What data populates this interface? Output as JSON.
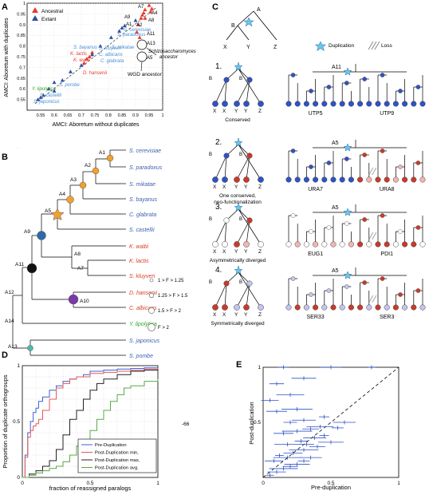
{
  "panels": {
    "A": {
      "letter": "A",
      "legend": {
        "ancestral": "Ancestral",
        "extant": "Extant"
      },
      "ylabel": "AMCI: Aboretum with duplicates",
      "xlabel": "AMCI: Aboretum without  duplicates",
      "yticks": [
        "1",
        "0.95",
        "0.9",
        "0.85",
        "0.8",
        "0.75",
        "0.7",
        "0.65",
        "0.6",
        "0.55"
      ],
      "xticks": [
        "0.55",
        "0.6",
        "0.65",
        "0.7",
        "0.75",
        "0.8",
        "0.85",
        "0.9",
        "0.95",
        "1"
      ],
      "ancestral_labels": [
        "A7",
        "A4",
        "A8",
        "A9",
        "A1",
        "A2",
        "A11",
        "A13",
        "A5"
      ],
      "species_labels": [
        "S. cerevisiae",
        "S. paradoxus",
        "S. mikatae",
        "S. bayanus",
        "K. lactis",
        "S. kluyveri",
        "C. albicans",
        "K. waltii",
        "C. glabrata",
        "D. hansenii",
        "Y. lipolytica",
        "S. pombe",
        "S. castellii",
        "S. japonicus"
      ],
      "annotation1": "Schizosaccharomyces",
      "annotation2": "ancestor",
      "annotation3": "WGD ancestor",
      "colors": {
        "ancestral": "#e8392b",
        "extant": "#2b4fa3"
      }
    },
    "B": {
      "letter": "B",
      "species": [
        "S. cerevisiae",
        "S. paradoxus",
        "S. mikatae",
        "S. bayanus",
        "C. glabrata",
        "S. castellii",
        "K. waltii",
        "K. lactis",
        "S. kluyveri",
        "D. hansenii",
        "C. albicans",
        "Y. lipolytica",
        "S. japonicus",
        "S. pombe"
      ],
      "node_labels": [
        "A1",
        "A2",
        "A3",
        "A4",
        "A5",
        "A9",
        "A8",
        "A7",
        "A11",
        "A10",
        "A12",
        "A14",
        "A13"
      ],
      "size_legend": [
        "1 > F > 1.25",
        "1.25 > F > 1.5",
        "1.5 > F > 2",
        "F > 2"
      ]
    },
    "C": {
      "letter": "C",
      "legend": {
        "duplication": "Duplication",
        "loss": "Loss"
      },
      "scheme_labels": {
        "a": "A",
        "b": "B",
        "x": "X",
        "y": "Y",
        "z": "Z"
      },
      "rows": [
        {
          "num": "1.",
          "caption": "Conserved",
          "caption2": "",
          "left": "UTP5",
          "right": "UTP9",
          "node": "A11"
        },
        {
          "num": "2.",
          "caption": "One conserved,",
          "caption2": "neo-functionalization",
          "left": "URA7",
          "right": "URA8",
          "node": "A5"
        },
        {
          "num": "3.",
          "caption": "Asymmetrically diverged",
          "caption2": "",
          "left": "EUG1",
          "right": "PDI1",
          "node": "A5"
        },
        {
          "num": "4.",
          "caption": "Symmetrically diverged",
          "caption2": "",
          "left": "SER33",
          "right": "SER3",
          "node": "A5"
        }
      ]
    },
    "D": {
      "letter": "D",
      "ylabel": "Proportion of duplicate orthogroups",
      "xlabel": "fraction of reassigned paralogs",
      "xticks": [
        "0",
        "0.5",
        "1"
      ],
      "yticks": [
        "0",
        "0.5",
        "1"
      ],
      "legend": [
        "Pre-Duplication",
        "Post-Duplication min,",
        "Post-Duplication max,",
        "Post-Duplication avg."
      ],
      "side_text": "-66"
    },
    "E": {
      "letter": "E",
      "ylabel": "Post-duplication",
      "xlabel": "Pre-duplication",
      "xticks": [
        "0",
        "0.5",
        "1"
      ],
      "yticks": [
        "1",
        "0.5"
      ]
    }
  },
  "chart_data": [
    {
      "type": "scatter",
      "title": "",
      "xlabel": "AMCI: Aboretum without  duplicates",
      "ylabel": "AMCI: Aboretum with duplicates",
      "xlim": [
        0.5,
        1.0
      ],
      "ylim": [
        0.5,
        1.0
      ],
      "series": [
        {
          "name": "Ancestral",
          "points": [
            [
              0.95,
              0.99
            ],
            [
              0.96,
              0.975
            ],
            [
              0.955,
              0.96
            ],
            [
              0.935,
              0.97
            ],
            [
              0.93,
              0.955
            ],
            [
              0.925,
              0.945
            ],
            [
              0.935,
              0.93
            ],
            [
              0.92,
              0.93
            ],
            [
              0.91,
              0.9
            ],
            [
              0.905,
              0.865
            ],
            [
              0.915,
              0.84
            ],
            [
              0.72,
              0.74
            ],
            [
              0.73,
              0.75
            ],
            [
              0.74,
              0.77
            ],
            [
              0.71,
              0.72
            ]
          ]
        },
        {
          "name": "Extant",
          "points": [
            [
              0.9,
              0.92
            ],
            [
              0.86,
              0.895
            ],
            [
              0.85,
              0.885
            ],
            [
              0.84,
              0.87
            ],
            [
              0.81,
              0.84
            ],
            [
              0.77,
              0.8
            ],
            [
              0.74,
              0.76
            ],
            [
              0.63,
              0.64
            ],
            [
              0.6,
              0.63
            ],
            [
              0.58,
              0.6
            ],
            [
              0.6,
              0.59
            ],
            [
              0.56,
              0.57
            ],
            [
              0.55,
              0.56
            ],
            [
              0.54,
              0.55
            ],
            [
              0.66,
              0.68
            ],
            [
              0.7,
              0.71
            ]
          ]
        }
      ]
    },
    {
      "type": "line",
      "title": "",
      "xlabel": "fraction of reassigned paralogs",
      "ylabel": "Proportion of duplicate orthogroups",
      "xlim": [
        0,
        1
      ],
      "ylim": [
        0,
        1
      ],
      "series": [
        {
          "name": "Pre-Duplication",
          "color": "#3f5fd6",
          "x": [
            0,
            0.02,
            0.04,
            0.06,
            0.08,
            0.1,
            0.12,
            0.15,
            0.2,
            0.25,
            0.3,
            0.35,
            0.4,
            0.45,
            0.5,
            0.6,
            0.7,
            0.8,
            0.9,
            1
          ],
          "y": [
            0,
            0.2,
            0.4,
            0.5,
            0.58,
            0.62,
            0.68,
            0.72,
            0.78,
            0.82,
            0.86,
            0.88,
            0.9,
            0.92,
            0.95,
            0.96,
            0.97,
            0.975,
            0.98,
            0.98
          ]
        },
        {
          "name": "Post-Duplication min,",
          "color": "#e05a5a",
          "x": [
            0,
            0.02,
            0.04,
            0.06,
            0.08,
            0.1,
            0.12,
            0.15,
            0.2,
            0.25,
            0.3,
            0.35,
            0.4,
            0.5,
            0.6,
            0.7,
            0.8,
            0.9,
            1
          ],
          "y": [
            0,
            0.18,
            0.36,
            0.42,
            0.46,
            0.48,
            0.52,
            0.6,
            0.7,
            0.8,
            0.84,
            0.88,
            0.9,
            0.93,
            0.94,
            0.95,
            0.96,
            0.97,
            0.98
          ]
        },
        {
          "name": "Post-Duplication max,",
          "color": "#222222",
          "x": [
            0,
            0.05,
            0.1,
            0.15,
            0.2,
            0.25,
            0.3,
            0.35,
            0.4,
            0.45,
            0.5,
            0.55,
            0.6,
            0.7,
            0.8,
            0.9,
            1
          ],
          "y": [
            0,
            0.03,
            0.06,
            0.1,
            0.15,
            0.25,
            0.38,
            0.52,
            0.6,
            0.7,
            0.78,
            0.84,
            0.88,
            0.92,
            0.95,
            0.96,
            0.97
          ]
        },
        {
          "name": "Post-Duplication avg.",
          "color": "#5aa846",
          "x": [
            0,
            0.05,
            0.1,
            0.15,
            0.2,
            0.25,
            0.3,
            0.35,
            0.4,
            0.45,
            0.5,
            0.55,
            0.6,
            0.65,
            0.7,
            0.75,
            0.8,
            0.9,
            1
          ],
          "y": [
            0,
            0.02,
            0.04,
            0.06,
            0.08,
            0.1,
            0.14,
            0.2,
            0.28,
            0.34,
            0.42,
            0.52,
            0.6,
            0.68,
            0.74,
            0.8,
            0.82,
            0.86,
            0.88
          ]
        }
      ]
    },
    {
      "type": "scatter",
      "title": "",
      "xlabel": "Pre-duplication",
      "ylabel": "Post-duplication",
      "xlim": [
        0,
        1
      ],
      "ylim": [
        0,
        1
      ],
      "series": [
        {
          "points": [
            [
              0.05,
              0.02
            ],
            [
              0.1,
              0.05
            ],
            [
              0.15,
              0.08
            ],
            [
              0.2,
              0.1
            ],
            [
              0.25,
              0.12
            ],
            [
              0.3,
              0.15
            ],
            [
              0.35,
              0.18
            ],
            [
              0.12,
              0.2
            ],
            [
              0.22,
              0.22
            ],
            [
              0.3,
              0.25
            ],
            [
              0.4,
              0.28
            ],
            [
              0.18,
              0.3
            ],
            [
              0.28,
              0.33
            ],
            [
              0.38,
              0.36
            ],
            [
              0.45,
              0.38
            ],
            [
              0.15,
              0.4
            ],
            [
              0.25,
              0.42
            ],
            [
              0.35,
              0.44
            ],
            [
              0.42,
              0.46
            ],
            [
              0.2,
              0.5
            ],
            [
              0.3,
              0.52
            ],
            [
              0.45,
              0.55
            ],
            [
              0.1,
              0.6
            ],
            [
              0.25,
              0.62
            ],
            [
              0.05,
              0.7
            ],
            [
              0.2,
              0.75
            ],
            [
              0.1,
              0.85
            ],
            [
              0.3,
              0.9
            ],
            [
              0.15,
              1.0
            ],
            [
              0.5,
              1.0
            ],
            [
              0.8,
              1.0
            ],
            [
              0.08,
              0.15
            ],
            [
              0.18,
              0.18
            ],
            [
              0.32,
              0.3
            ],
            [
              0.5,
              0.32
            ],
            [
              0.55,
              0.45
            ],
            [
              0.6,
              0.5
            ]
          ]
        }
      ]
    }
  ]
}
